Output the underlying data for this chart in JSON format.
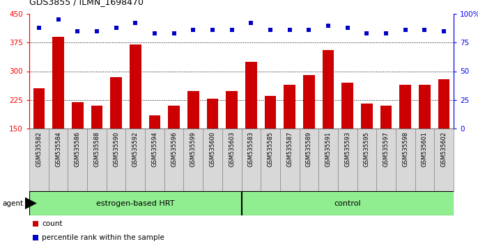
{
  "title": "GDS3855 / ILMN_1698470",
  "samples": [
    "GSM535582",
    "GSM535584",
    "GSM535586",
    "GSM535588",
    "GSM535590",
    "GSM535592",
    "GSM535594",
    "GSM535596",
    "GSM535599",
    "GSM535600",
    "GSM535603",
    "GSM535583",
    "GSM535585",
    "GSM535587",
    "GSM535589",
    "GSM535591",
    "GSM535593",
    "GSM535595",
    "GSM535597",
    "GSM535598",
    "GSM535601",
    "GSM535602"
  ],
  "counts": [
    255,
    390,
    220,
    210,
    285,
    370,
    185,
    210,
    248,
    228,
    248,
    325,
    235,
    265,
    290,
    355,
    270,
    215,
    210,
    265,
    265,
    280
  ],
  "percentiles": [
    88,
    95,
    85,
    85,
    88,
    92,
    83,
    83,
    86,
    86,
    86,
    92,
    86,
    86,
    86,
    90,
    88,
    83,
    83,
    86,
    86,
    85
  ],
  "n_groups": 2,
  "group1_label": "estrogen-based HRT",
  "group1_count": 11,
  "group2_label": "control",
  "group2_count": 11,
  "group_color": "#90EE90",
  "ylim_left": [
    150,
    450
  ],
  "ylim_right": [
    0,
    100
  ],
  "yticks_left": [
    150,
    225,
    300,
    375,
    450
  ],
  "yticks_right": [
    0,
    25,
    50,
    75,
    100
  ],
  "grid_lines": [
    225,
    300,
    375
  ],
  "bar_color": "#cc0000",
  "dot_color": "#0000cc",
  "agent_label": "agent",
  "legend_count_label": "count",
  "legend_percentile_label": "percentile rank within the sample",
  "tick_box_color_even": "#d8d8d8",
  "tick_box_color_odd": "#c8c8c8",
  "n_samples": 22
}
